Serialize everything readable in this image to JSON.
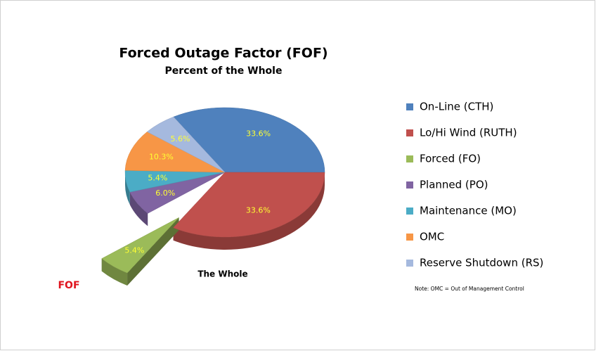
{
  "chart_data": {
    "type": "pie",
    "title": "Forced Outage Factor (FOF)",
    "subtitle": "Percent of the Whole",
    "categories": [
      "On-Line (CTH)",
      "Lo/Hi Wind (RUTH)",
      "Forced (FO)",
      "Planned (PO)",
      "Maintenance (MO)",
      "OMC",
      "Reserve Shutdown (RS)"
    ],
    "values": [
      33.6,
      33.6,
      5.4,
      6.0,
      5.4,
      10.3,
      5.6
    ],
    "value_labels": [
      "33.6%",
      "33.6%",
      "5.4%",
      "6.0%",
      "5.4%",
      "10.3%",
      "5.6%"
    ],
    "colors": [
      "#4f81bd",
      "#c0504d",
      "#9bbb59",
      "#8064a2",
      "#4bacc6",
      "#f79646",
      "#a5b9de"
    ],
    "legend": "right",
    "annotations": [
      "The Whole",
      "FOF",
      "Note: OMC = Out of Management  Control"
    ]
  }
}
